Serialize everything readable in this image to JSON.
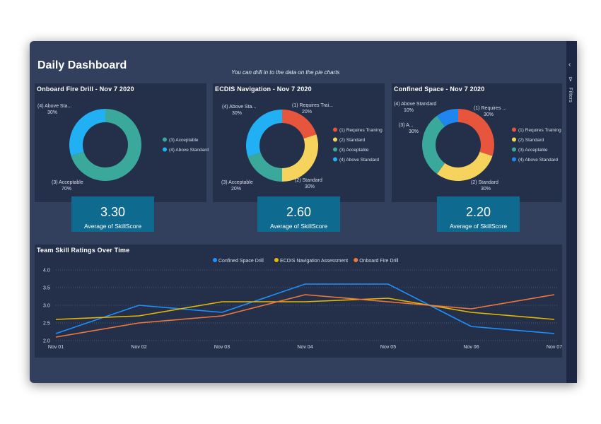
{
  "dashboard": {
    "title": "Daily Dashboard",
    "drill_note": "You can drill in to the data on the pie charts",
    "filters_label": "Filters"
  },
  "pies": [
    {
      "title": "Onboard Fire Drill - Nov 7 2020",
      "kpi_value": "3.30",
      "kpi_label": "Average of SkillScore",
      "legend": [
        {
          "label": "(3) Acceptable",
          "color": "#3aa99c"
        },
        {
          "label": "(4) Above Standard",
          "color": "#22b0f5"
        }
      ],
      "slices": [
        {
          "name": "(4) Above Sta...",
          "pct": "30%",
          "value": 30,
          "color": "#22b0f5"
        },
        {
          "name": "(3) Acceptable",
          "pct": "70%",
          "value": 70,
          "color": "#3aa99c"
        }
      ]
    },
    {
      "title": "ECDIS Navigation - Nov 7 2020",
      "kpi_value": "2.60",
      "kpi_label": "Average of SkillScore",
      "legend": [
        {
          "label": "(1) Requires Training",
          "color": "#e8553d"
        },
        {
          "label": "(2) Standard",
          "color": "#f6d35c"
        },
        {
          "label": "(3) Acceptable",
          "color": "#3aa99c"
        },
        {
          "label": "(4) Above Standard",
          "color": "#22b0f5"
        }
      ],
      "slices": [
        {
          "name": "(1) Requires Trai...",
          "pct": "20%",
          "value": 20,
          "color": "#e8553d"
        },
        {
          "name": "(2) Standard",
          "pct": "30%",
          "value": 30,
          "color": "#f6d35c"
        },
        {
          "name": "(3) Acceptable",
          "pct": "20%",
          "value": 20,
          "color": "#3aa99c"
        },
        {
          "name": "(4) Above Sta...",
          "pct": "30%",
          "value": 30,
          "color": "#22b0f5"
        }
      ]
    },
    {
      "title": "Confined Space - Nov 7 2020",
      "kpi_value": "2.20",
      "kpi_label": "Average of SkillScore",
      "legend": [
        {
          "label": "(1) Requires Training",
          "color": "#e8553d"
        },
        {
          "label": "(2) Standard",
          "color": "#f6d35c"
        },
        {
          "label": "(3) Acceptable",
          "color": "#3aa99c"
        },
        {
          "label": "(4) Above Standard",
          "color": "#1f86f0"
        }
      ],
      "slices": [
        {
          "name": "(1) Requires ...",
          "pct": "30%",
          "value": 30,
          "color": "#e8553d"
        },
        {
          "name": "(2) Standard",
          "pct": "30%",
          "value": 30,
          "color": "#f6d35c"
        },
        {
          "name": "(3) A...",
          "pct": "30%",
          "value": 30,
          "color": "#3aa99c"
        },
        {
          "name": "(4) Above Standard",
          "pct": "10%",
          "value": 10,
          "color": "#1f86f0"
        }
      ]
    }
  ],
  "chart_data": {
    "type": "line",
    "title": "Team Skill Ratings Over Time",
    "categories": [
      "Nov 01",
      "Nov 02",
      "Nov 03",
      "Nov 04",
      "Nov 05",
      "Nov 06",
      "Nov 07"
    ],
    "yticks": [
      "4.0",
      "3.5",
      "3.0",
      "2.5",
      "2.0"
    ],
    "ylim": [
      2.0,
      4.0
    ],
    "grid": true,
    "legend_position": "top-center",
    "series": [
      {
        "name": "Confined Space Drill",
        "color": "#1e90ff",
        "values": [
          2.2,
          3.0,
          2.8,
          3.6,
          3.6,
          2.4,
          2.2
        ]
      },
      {
        "name": "ECDIS Navigation Assessment",
        "color": "#e6b800",
        "values": [
          2.6,
          2.7,
          3.1,
          3.1,
          3.2,
          2.8,
          2.6
        ]
      },
      {
        "name": "Onboard Fire Drill",
        "color": "#f0783c",
        "values": [
          2.1,
          2.5,
          2.7,
          3.3,
          3.1,
          2.9,
          3.3
        ]
      }
    ]
  }
}
